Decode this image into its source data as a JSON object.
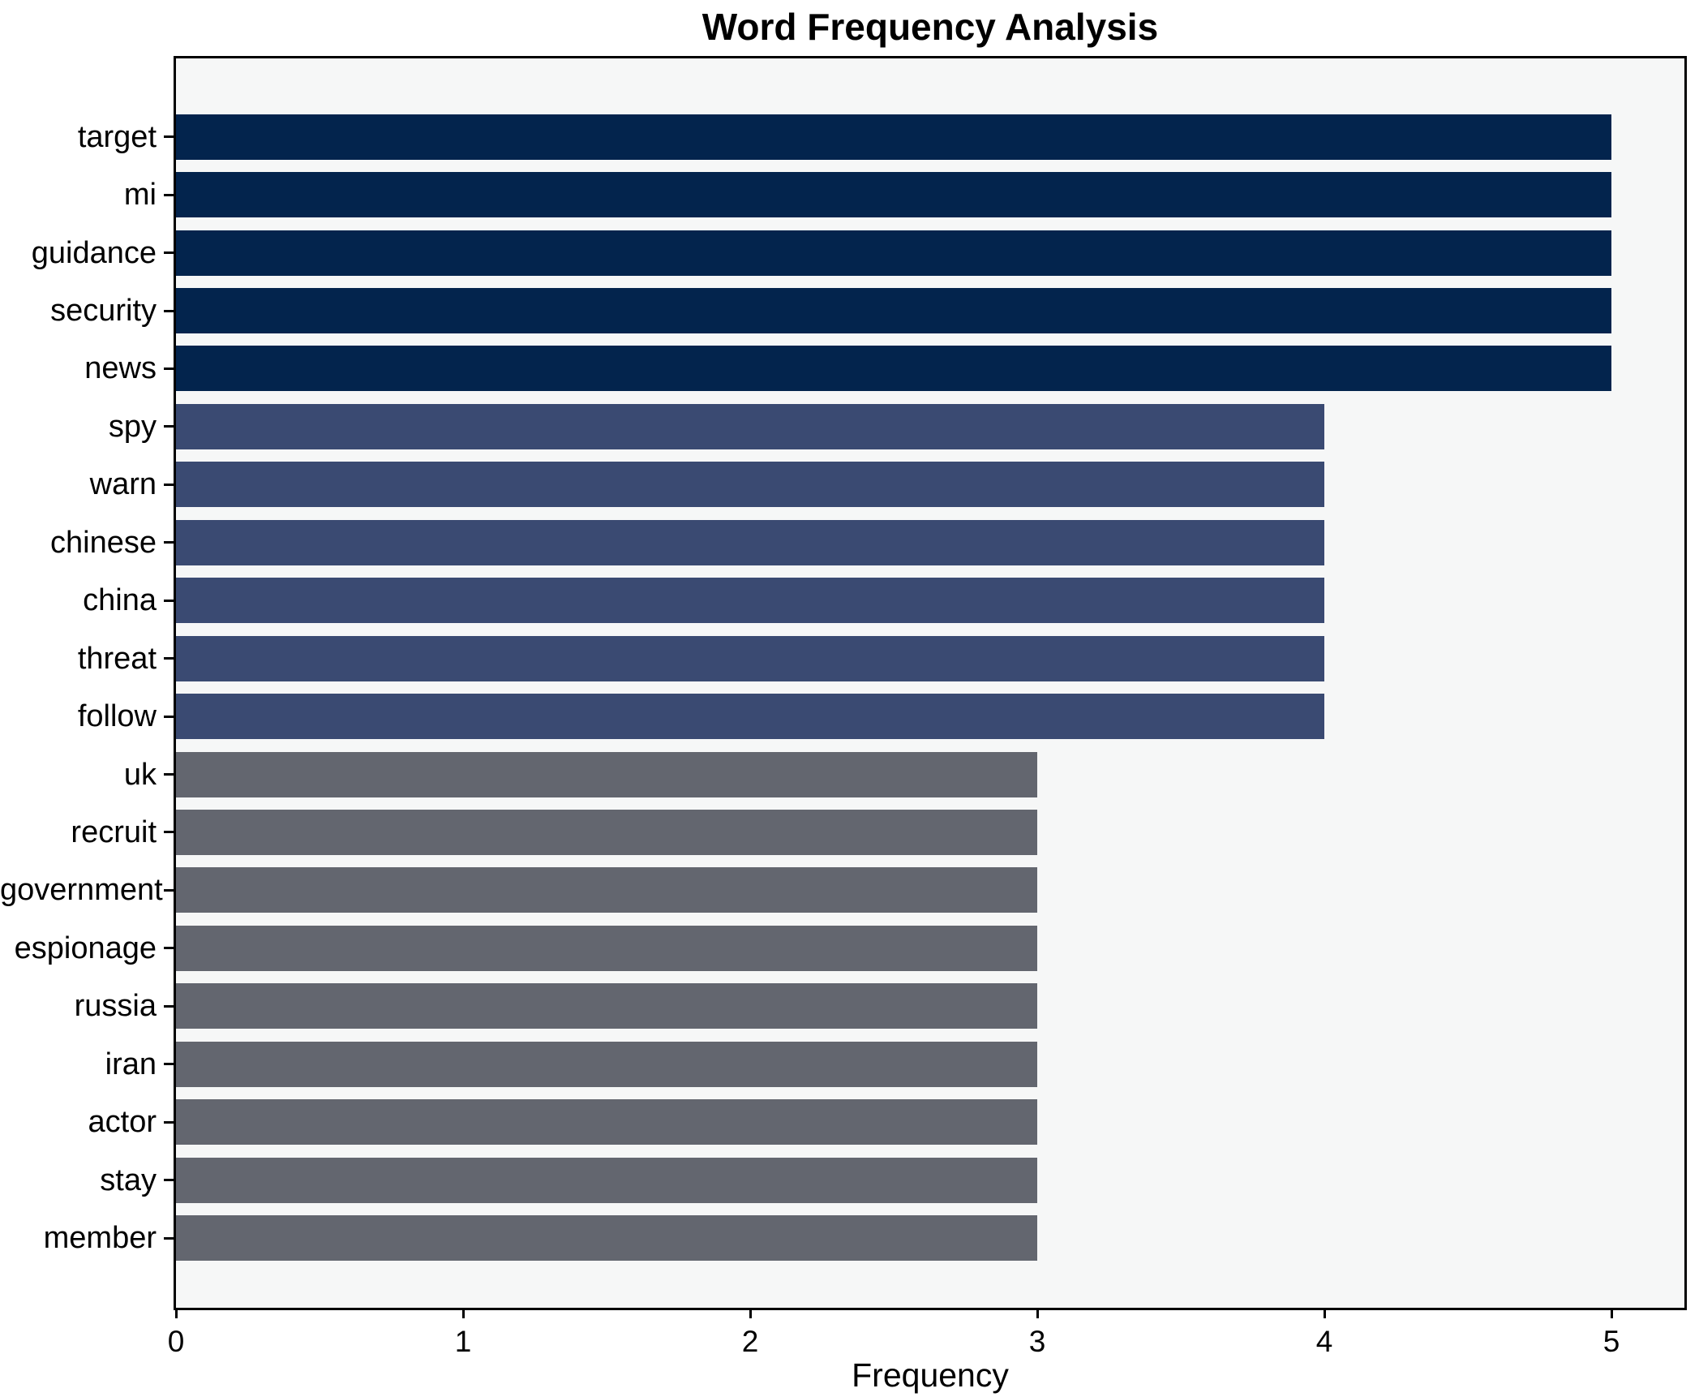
{
  "chart_data": {
    "type": "bar",
    "orientation": "horizontal",
    "title": "Word Frequency Analysis",
    "xlabel": "Frequency",
    "ylabel": "",
    "categories": [
      "target",
      "mi",
      "guidance",
      "security",
      "news",
      "spy",
      "warn",
      "chinese",
      "china",
      "threat",
      "follow",
      "uk",
      "recruit",
      "government",
      "espionage",
      "russia",
      "iran",
      "actor",
      "stay",
      "member"
    ],
    "values": [
      5,
      5,
      5,
      5,
      5,
      4,
      4,
      4,
      4,
      4,
      4,
      3,
      3,
      3,
      3,
      3,
      3,
      3,
      3,
      3
    ],
    "xticks": [
      0,
      1,
      2,
      3,
      4,
      5
    ],
    "xlim": [
      0,
      5.25
    ],
    "grid": false,
    "legend_position": "none",
    "bar_colors_by_value": {
      "5": "#03244d",
      "4": "#3a4a72",
      "3": "#63666f"
    },
    "plot_background": "#f6f7f7",
    "figure_background": "#ffffff",
    "frame_color": "#000000"
  }
}
